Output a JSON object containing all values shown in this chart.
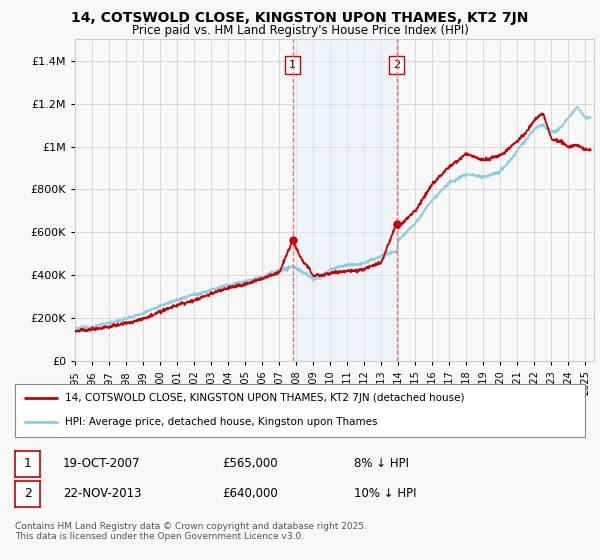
{
  "title": "14, COTSWOLD CLOSE, KINGSTON UPON THAMES, KT2 7JN",
  "subtitle": "Price paid vs. HM Land Registry's House Price Index (HPI)",
  "legend_line1": "14, COTSWOLD CLOSE, KINGSTON UPON THAMES, KT2 7JN (detached house)",
  "legend_line2": "HPI: Average price, detached house, Kingston upon Thames",
  "transaction1_date": "19-OCT-2007",
  "transaction1_price": "£565,000",
  "transaction1_hpi": "8% ↓ HPI",
  "transaction2_date": "22-NOV-2013",
  "transaction2_price": "£640,000",
  "transaction2_hpi": "10% ↓ HPI",
  "footer": "Contains HM Land Registry data © Crown copyright and database right 2025.\nThis data is licensed under the Open Government Licence v3.0.",
  "vline1_x": 2007.8,
  "vline2_x": 2013.9,
  "shade_xmin": 2007.8,
  "shade_xmax": 2013.9,
  "ylim": [
    0,
    1500000
  ],
  "xlim_min": 1995,
  "xlim_max": 2025.5,
  "hpi_color": "#87CEEB",
  "price_color": "#CC0000",
  "vline_color": "#FF6666",
  "shade_color": "#DDEEFF",
  "background_color": "#F8F8F8",
  "grid_color": "#CCCCCC",
  "dot_color": "#CC0000"
}
